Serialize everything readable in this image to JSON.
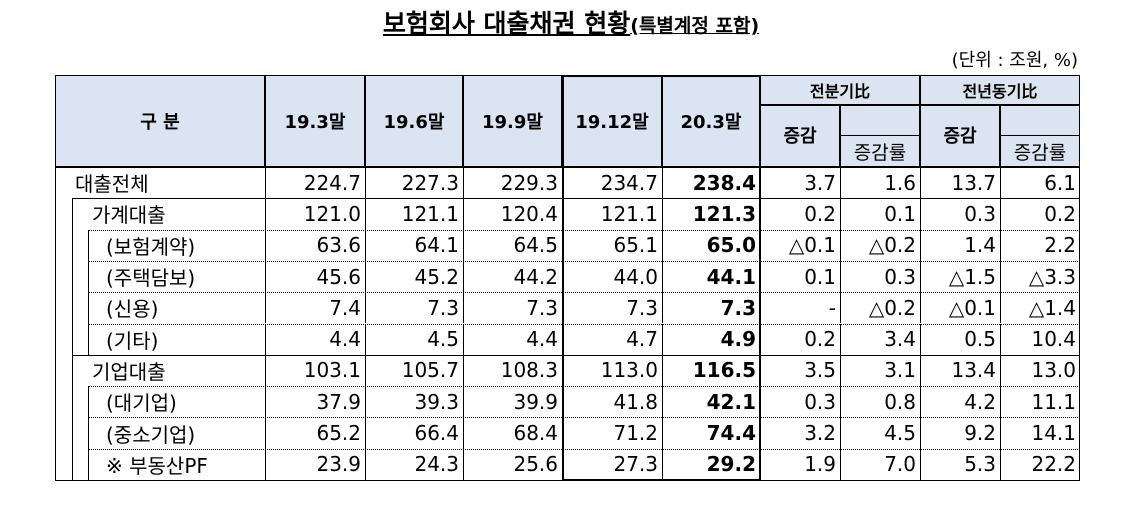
{
  "title": "보험회사 대출채권 현황",
  "subtitle": "(특별계정 포함)",
  "unit": "(단위 : 조원, %)",
  "header": {
    "label": "구 분",
    "periods": [
      "19.3말",
      "19.6말",
      "19.9말",
      "19.12말",
      "20.3말"
    ],
    "groups": [
      {
        "title": "전분기比",
        "cols": [
          "증감",
          "증감률"
        ]
      },
      {
        "title": "전년동기比",
        "cols": [
          "증감",
          "증감률"
        ]
      }
    ]
  },
  "rows": [
    {
      "label": "대출전체",
      "values": [
        "224.7",
        "227.3",
        "229.3",
        "234.7",
        "238.4",
        "3.7",
        "1.6",
        "13.7",
        "6.1"
      ]
    },
    {
      "label": "가계대출",
      "values": [
        "121.0",
        "121.1",
        "120.4",
        "121.1",
        "121.3",
        "0.2",
        "0.1",
        "0.3",
        "0.2"
      ]
    },
    {
      "label": "(보험계약)",
      "values": [
        "63.6",
        "64.1",
        "64.5",
        "65.1",
        "65.0",
        "△0.1",
        "△0.2",
        "1.4",
        "2.2"
      ]
    },
    {
      "label": "(주택담보)",
      "values": [
        "45.6",
        "45.2",
        "44.2",
        "44.0",
        "44.1",
        "0.1",
        "0.3",
        "△1.5",
        "△3.3"
      ]
    },
    {
      "label": "(신용)",
      "values": [
        "7.4",
        "7.3",
        "7.3",
        "7.3",
        "7.3",
        "-",
        "△0.2",
        "△0.1",
        "△1.4"
      ]
    },
    {
      "label": "(기타)",
      "values": [
        "4.4",
        "4.5",
        "4.4",
        "4.7",
        "4.9",
        "0.2",
        "3.4",
        "0.5",
        "10.4"
      ]
    },
    {
      "label": "기업대출",
      "values": [
        "103.1",
        "105.7",
        "108.3",
        "113.0",
        "116.5",
        "3.5",
        "3.1",
        "13.4",
        "13.0"
      ]
    },
    {
      "label": "(대기업)",
      "values": [
        "37.9",
        "39.3",
        "39.9",
        "41.8",
        "42.1",
        "0.3",
        "0.8",
        "4.2",
        "11.1"
      ]
    },
    {
      "label": "(중소기업)",
      "values": [
        "65.2",
        "66.4",
        "68.4",
        "71.2",
        "74.4",
        "3.2",
        "4.5",
        "9.2",
        "14.1"
      ]
    },
    {
      "label": "※ 부동산PF",
      "values": [
        "23.9",
        "24.3",
        "25.6",
        "27.3",
        "29.2",
        "1.9",
        "7.0",
        "5.3",
        "22.2"
      ]
    }
  ]
}
